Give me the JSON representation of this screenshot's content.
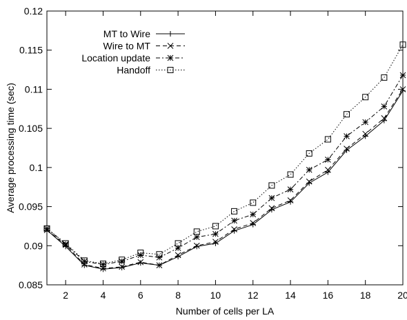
{
  "chart_data": {
    "type": "line",
    "xlabel": "Number of cells per LA",
    "ylabel": "Average processing time (sec)",
    "xlim": [
      1,
      20
    ],
    "ylim": [
      0.085,
      0.12
    ],
    "x_ticks": [
      2,
      4,
      6,
      8,
      10,
      12,
      14,
      16,
      18,
      20
    ],
    "y_ticks": [
      "0.085",
      "0.09",
      "0.095",
      "0.1",
      "0.105",
      "0.11",
      "0.115",
      "0.12"
    ],
    "grid": false,
    "legend_position": "top-left",
    "x": [
      1,
      2,
      3,
      4,
      5,
      6,
      7,
      8,
      9,
      10,
      11,
      12,
      13,
      14,
      15,
      16,
      17,
      18,
      19,
      20
    ],
    "series": [
      {
        "name": "MT to Wire",
        "marker": "plus",
        "dash": "solid",
        "values": [
          0.092,
          0.0899,
          0.0875,
          0.087,
          0.0872,
          0.0878,
          0.0875,
          0.0886,
          0.0899,
          0.0903,
          0.0919,
          0.0927,
          0.0946,
          0.0956,
          0.098,
          0.0994,
          0.1022,
          0.104,
          0.106,
          0.1098
        ]
      },
      {
        "name": "Wire to MT",
        "marker": "cross",
        "dash": "dashed",
        "values": [
          0.092,
          0.0901,
          0.0876,
          0.0871,
          0.0873,
          0.0879,
          0.0875,
          0.0888,
          0.09,
          0.0905,
          0.0921,
          0.0929,
          0.0948,
          0.0958,
          0.0982,
          0.0997,
          0.1024,
          0.1043,
          0.1063,
          0.11
        ]
      },
      {
        "name": "Location update",
        "marker": "star",
        "dash": "dashdot",
        "values": [
          0.0922,
          0.0902,
          0.088,
          0.0876,
          0.088,
          0.0888,
          0.0885,
          0.0897,
          0.0911,
          0.0915,
          0.0932,
          0.094,
          0.0961,
          0.0972,
          0.0997,
          0.101,
          0.104,
          0.1058,
          0.1078,
          0.1118
        ]
      },
      {
        "name": "Handoff",
        "marker": "square",
        "dash": "dotted",
        "values": [
          0.0922,
          0.0903,
          0.0881,
          0.0877,
          0.0882,
          0.0891,
          0.0889,
          0.0903,
          0.0918,
          0.0925,
          0.0944,
          0.0955,
          0.0977,
          0.0991,
          0.1018,
          0.1036,
          0.1068,
          0.109,
          0.1115,
          0.1157
        ]
      }
    ]
  }
}
